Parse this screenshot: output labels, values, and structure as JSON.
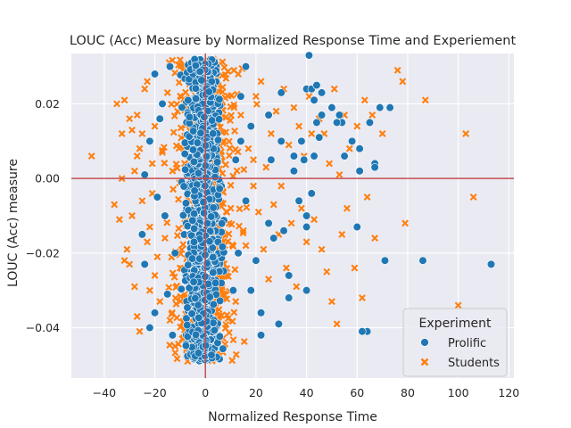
{
  "chart_data": {
    "type": "scatter",
    "title": "LOUC (Acc) Measure by Normalized Response Time and Experiement",
    "xlabel": "Normalized Response Time",
    "ylabel": "LOUC (Acc) measure",
    "xlim": [
      -53,
      122
    ],
    "ylim": [
      -0.0535,
      0.0335
    ],
    "xticks": [
      -40,
      -20,
      0,
      20,
      40,
      60,
      80,
      100,
      120
    ],
    "yticks": [
      -0.04,
      -0.02,
      0.0,
      0.02
    ],
    "ytick_labels": [
      "−0.04",
      "−0.02",
      "0.00",
      "0.02"
    ],
    "xtick_labels": [
      "−40",
      "−20",
      "0",
      "20",
      "40",
      "60",
      "80",
      "100",
      "120"
    ],
    "reference_lines": {
      "x": 0,
      "y": 0,
      "color": "#c44e52"
    },
    "grid": true,
    "background": "#eaeaf2",
    "legend": {
      "title": "Experiment",
      "position": "lower-right",
      "entries": [
        {
          "label": "Prolific",
          "marker": "circle",
          "color": "#1f77b4"
        },
        {
          "label": "Students",
          "marker": "x",
          "color": "#ff7f0e"
        }
      ]
    },
    "series": [
      {
        "name": "Prolific",
        "marker": "circle",
        "color": "#1f77b4",
        "points": [
          [
            113,
            -0.023
          ],
          [
            86,
            -0.022
          ],
          [
            71,
            -0.022
          ],
          [
            67,
            0.004
          ],
          [
            67,
            0.003
          ],
          [
            69,
            0.019
          ],
          [
            73,
            0.019
          ],
          [
            64,
            -0.041
          ],
          [
            62,
            -0.041
          ],
          [
            60,
            -0.013
          ],
          [
            61,
            0.008
          ],
          [
            65,
            0.015
          ],
          [
            61,
            0.002
          ],
          [
            53,
            0.017
          ],
          [
            54,
            0.015
          ],
          [
            50,
            0.019
          ],
          [
            46,
            0.023
          ],
          [
            46,
            0.017
          ],
          [
            40,
            0.024
          ],
          [
            42,
            0.024
          ],
          [
            44,
            0.025
          ],
          [
            41,
            0.033
          ],
          [
            43,
            0.021
          ],
          [
            44,
            0.015
          ],
          [
            45,
            0.011
          ],
          [
            43,
            0.006
          ],
          [
            40,
            -0.013
          ],
          [
            42,
            -0.004
          ],
          [
            40,
            -0.03
          ],
          [
            40,
            -0.01
          ],
          [
            39,
            0.005
          ],
          [
            33,
            -0.026
          ],
          [
            33,
            -0.032
          ],
          [
            29,
            -0.039
          ],
          [
            27,
            -0.016
          ],
          [
            30,
            0.01
          ],
          [
            30,
            0.023
          ],
          [
            35,
            0.006
          ],
          [
            31,
            -0.014
          ],
          [
            26,
            0.005
          ],
          [
            22,
            -0.042
          ],
          [
            22,
            -0.036
          ],
          [
            20,
            -0.022
          ],
          [
            25,
            0.017
          ],
          [
            25,
            -0.012
          ],
          [
            38,
            0.01
          ],
          [
            35,
            0.002
          ],
          [
            55,
            0.006
          ],
          [
            52,
            0.015
          ],
          [
            58,
            0.01
          ],
          [
            37,
            -0.006
          ],
          [
            18,
            0.014
          ],
          [
            18,
            -0.03
          ],
          [
            16,
            0.03
          ],
          [
            14,
            0.01
          ],
          [
            16,
            -0.006
          ],
          [
            13,
            -0.02
          ],
          [
            14,
            0.022
          ],
          [
            12,
            0.005
          ],
          [
            11,
            -0.03
          ],
          [
            -20,
            0.028
          ],
          [
            -22,
            0.01
          ],
          [
            -24,
            0.001
          ],
          [
            -24,
            -0.023
          ],
          [
            -22,
            -0.04
          ],
          [
            -20,
            -0.036
          ],
          [
            -25,
            -0.015
          ],
          [
            -18,
            0.016
          ],
          [
            -16,
            -0.01
          ],
          [
            -15,
            -0.031
          ],
          [
            -17,
            0.02
          ],
          [
            -14,
            0.03
          ],
          [
            -19,
            -0.005
          ],
          [
            -13,
            -0.042
          ],
          [
            -12,
            -0.02
          ]
        ]
      },
      {
        "name": "Students",
        "marker": "x",
        "color": "#ff7f0e",
        "points": [
          [
            -45,
            0.006
          ],
          [
            -34,
            -0.011
          ],
          [
            -33,
            0.0
          ],
          [
            -32,
            0.021
          ],
          [
            -32,
            -0.022
          ],
          [
            -31,
            -0.019
          ],
          [
            -30,
            0.016
          ],
          [
            -29,
            0.013
          ],
          [
            -28,
            -0.029
          ],
          [
            -27,
            0.006
          ],
          [
            -27,
            -0.037
          ],
          [
            -26,
            -0.041
          ],
          [
            -25,
            0.012
          ],
          [
            -24,
            0.024
          ],
          [
            -23,
            0.026
          ],
          [
            -22,
            -0.013
          ],
          [
            -22,
            -0.03
          ],
          [
            -21,
            -0.004
          ],
          [
            -20,
            0.014
          ],
          [
            -19,
            -0.021
          ],
          [
            -18,
            -0.033
          ],
          [
            -17,
            0.007
          ],
          [
            -16,
            -0.016
          ],
          [
            -15,
            0.023
          ],
          [
            -14,
            -0.038
          ],
          [
            -13,
            0.002
          ],
          [
            -12,
            -0.045
          ],
          [
            -11,
            0.018
          ],
          [
            -10,
            -0.024
          ],
          [
            -9,
            0.029
          ],
          [
            -7,
            -0.049
          ],
          [
            -6,
            -0.048
          ],
          [
            -36,
            -0.007
          ],
          [
            -30,
            -0.023
          ],
          [
            -26,
            0.008
          ],
          [
            -28,
            0.002
          ],
          [
            -25,
            -0.006
          ],
          [
            -23,
            -0.017
          ],
          [
            -21,
            0.004
          ],
          [
            -20,
            -0.026
          ],
          [
            -35,
            0.02
          ],
          [
            -33,
            0.012
          ],
          [
            -29,
            -0.01
          ],
          [
            -27,
            0.017
          ],
          [
            12,
            -0.033
          ],
          [
            14,
            0.017
          ],
          [
            15,
            -0.014
          ],
          [
            17,
            0.008
          ],
          [
            19,
            -0.002
          ],
          [
            20,
            0.022
          ],
          [
            21,
            -0.009
          ],
          [
            22,
            0.026
          ],
          [
            23,
            -0.019
          ],
          [
            24,
            0.003
          ],
          [
            25,
            -0.027
          ],
          [
            26,
            0.012
          ],
          [
            27,
            -0.007
          ],
          [
            28,
            0.018
          ],
          [
            29,
            -0.015
          ],
          [
            30,
            -0.002
          ],
          [
            31,
            0.024
          ],
          [
            32,
            -0.024
          ],
          [
            33,
            0.009
          ],
          [
            34,
            -0.012
          ],
          [
            35,
            0.019
          ],
          [
            36,
            -0.029
          ],
          [
            37,
            0.014
          ],
          [
            38,
            -0.008
          ],
          [
            39,
            0.006
          ],
          [
            40,
            -0.017
          ],
          [
            41,
            0.022
          ],
          [
            42,
            0.012
          ],
          [
            43,
            -0.011
          ],
          [
            45,
            0.016
          ],
          [
            46,
            -0.019
          ],
          [
            47,
            0.012
          ],
          [
            48,
            -0.025
          ],
          [
            49,
            0.004
          ],
          [
            50,
            -0.033
          ],
          [
            51,
            0.024
          ],
          [
            52,
            -0.039
          ],
          [
            53,
            0.001
          ],
          [
            54,
            -0.015
          ],
          [
            55,
            0.017
          ],
          [
            56,
            -0.008
          ],
          [
            57,
            0.008
          ],
          [
            59,
            -0.024
          ],
          [
            60,
            0.014
          ],
          [
            62,
            -0.032
          ],
          [
            63,
            0.021
          ],
          [
            64,
            -0.005
          ],
          [
            66,
            0.017
          ],
          [
            67,
            -0.016
          ],
          [
            70,
            0.012
          ],
          [
            76,
            0.029
          ],
          [
            78,
            0.026
          ],
          [
            79,
            -0.012
          ],
          [
            87,
            0.021
          ],
          [
            100,
            -0.034
          ],
          [
            103,
            0.012
          ],
          [
            106,
            -0.005
          ],
          [
            19,
            0.005
          ],
          [
            16,
            -0.018
          ],
          [
            13,
            0.028
          ]
        ]
      }
    ]
  }
}
